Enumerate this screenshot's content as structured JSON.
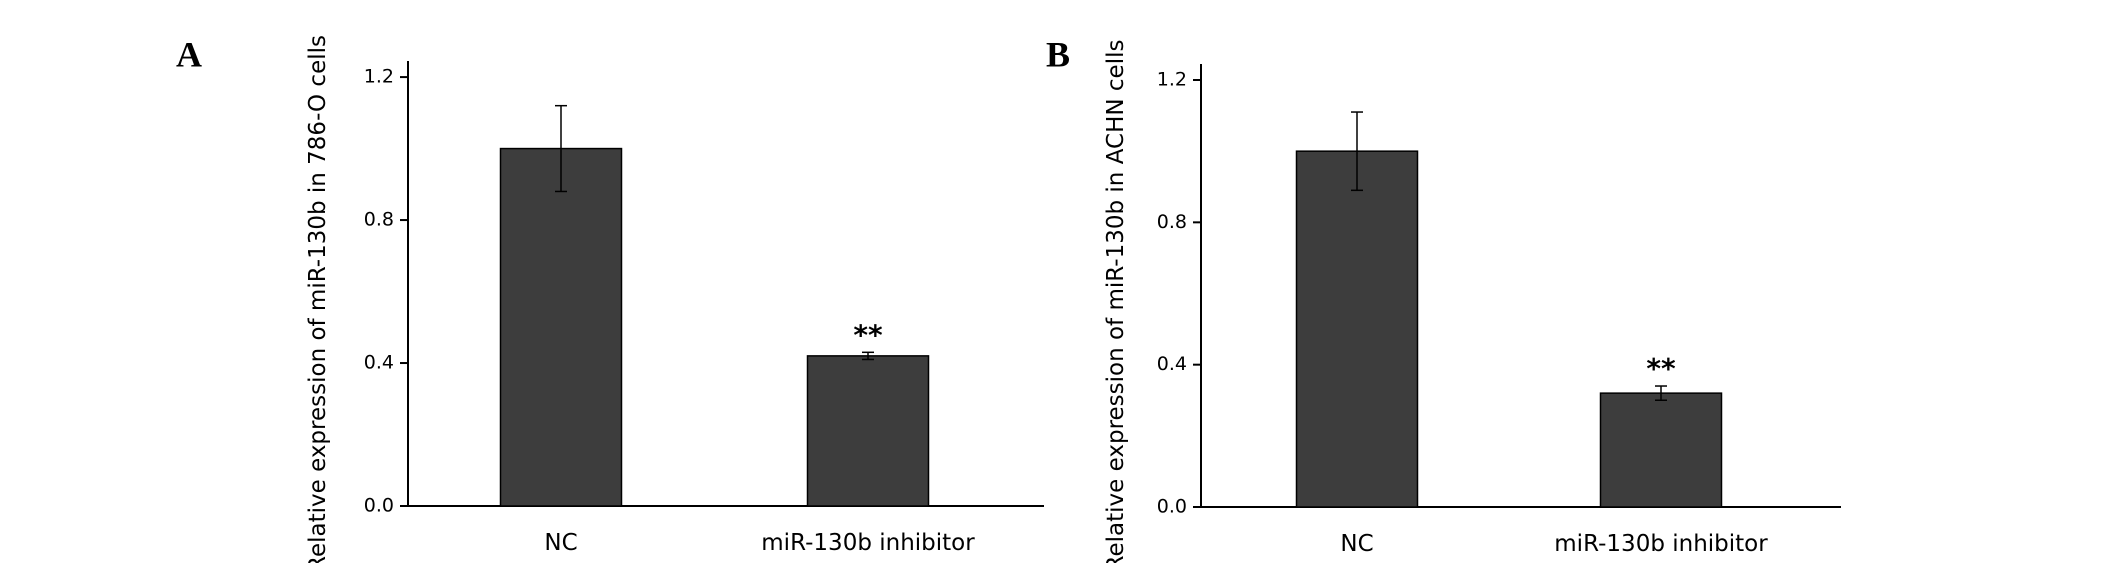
{
  "chart_data": [
    {
      "type": "bar",
      "panel": "A",
      "ylabel": "Relative expression of miR-130b in 786-O cells",
      "categories": [
        "NC",
        "miR-130b inhibitor"
      ],
      "values": [
        1.0,
        0.42
      ],
      "errors": [
        0.12,
        0.01
      ],
      "significance": [
        null,
        "**"
      ],
      "color": "#3d3d3d",
      "ylim": [
        0,
        1.245
      ],
      "yticks": [
        {
          "value": 0,
          "label": "0.0"
        },
        0.4,
        0.8,
        1.2
      ]
    },
    {
      "type": "bar",
      "panel": "B",
      "ylabel": "Relative expression of miR-130b in ACHN cells",
      "categories": [
        "NC",
        "miR-130b inhibitor"
      ],
      "values": [
        1.0,
        0.32
      ],
      "errors": [
        0.11,
        0.02
      ],
      "significance": [
        null,
        "**"
      ],
      "color": "#3d3d3d",
      "ylim": [
        0,
        1.245
      ],
      "yticks": [
        {
          "value": 0,
          "label": "0.0"
        },
        0.4,
        0.8,
        1.2
      ]
    }
  ]
}
